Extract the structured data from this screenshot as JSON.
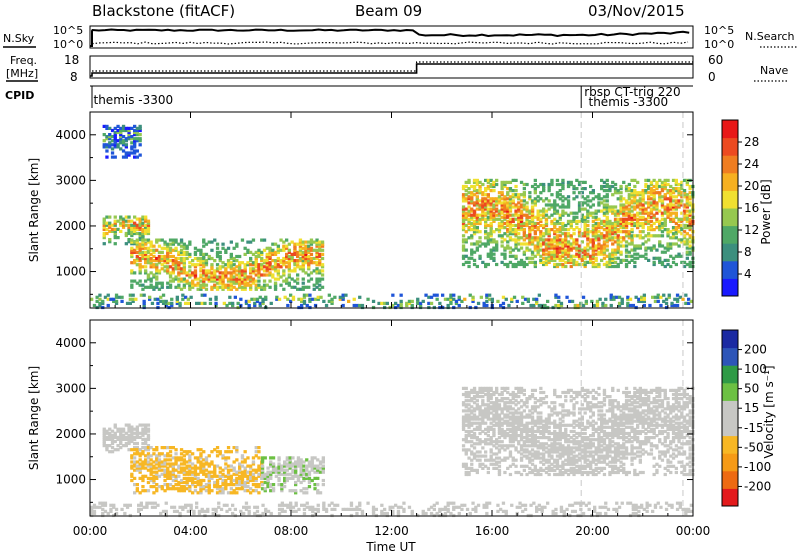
{
  "header": {
    "title": "Blackstone (fitACF)",
    "beam": "Beam 09",
    "date": "03/Nov/2015"
  },
  "top_panels": {
    "nsky_label": "N.Sky",
    "nsearch_label": "N.Search",
    "noise_ticks": [
      "10^5",
      "10^0"
    ],
    "freq_label_1": "Freq.",
    "freq_label_2": "[MHz]",
    "freq_ticks": [
      "18",
      "8"
    ],
    "nave_label": "Nave",
    "nave_ticks": [
      "60",
      "0"
    ],
    "cpid_label": "CPID",
    "cpid_segments": [
      {
        "text": "themis -3300",
        "start_hour": 0.1
      },
      {
        "text": "rbsp CT-trig 220",
        "start_hour": 19.55
      },
      {
        "text": "themis -3300",
        "start_hour": 19.6
      }
    ],
    "freq_step_hour": 13.0
  },
  "axes": {
    "xlabel": "Time UT",
    "ylabel": "Slant Range [km]",
    "x_tick_labels": [
      "00:00",
      "04:00",
      "08:00",
      "12:00",
      "16:00",
      "20:00",
      "00:00"
    ],
    "y_tick_labels": [
      "1000",
      "2000",
      "3000",
      "4000"
    ]
  },
  "colors": {
    "power": [
      "#1a1aff",
      "#1f55d8",
      "#3c8f7e",
      "#4fa866",
      "#96c850",
      "#f0e030",
      "#f6b020",
      "#ef7d20",
      "#ec4a20",
      "#e81818"
    ],
    "velocity": [
      "#e31a1c",
      "#ee6a12",
      "#f59a16",
      "#f7b724",
      "#c7c7c4",
      "#c7c7c4",
      "#6cc043",
      "#2f9a46",
      "#2d55b8",
      "#1b2aa2"
    ],
    "axis": "#000000",
    "guide": "#c8c8c8"
  },
  "chart_data": [
    {
      "type": "heatmap",
      "panel": "power",
      "xlabel": "Time UT",
      "ylabel": "Slant Range [km]",
      "xlim": [
        0,
        24
      ],
      "ylim": [
        200,
        4500
      ],
      "colorbar_label": "Power [dB]",
      "colorbar_ticks": [
        "28",
        "24",
        "20",
        "16",
        "12",
        "8",
        "4"
      ],
      "colorbar_range": [
        0,
        30
      ],
      "scatter_regions": [
        {
          "t": [
            0.5,
            2.3
          ],
          "r": [
            1600,
            2200
          ],
          "value": 17
        },
        {
          "t": [
            1.6,
            9.3
          ],
          "r": [
            600,
            1700
          ],
          "value": 18
        },
        {
          "t": [
            14.8,
            24.0
          ],
          "r": [
            1100,
            3000
          ],
          "value": 18
        },
        {
          "t": [
            0.5,
            2.0
          ],
          "r": [
            3500,
            4200
          ],
          "value": 7
        },
        {
          "t": [
            0.0,
            24.0
          ],
          "r": [
            200,
            500
          ],
          "value": 10
        }
      ]
    },
    {
      "type": "heatmap",
      "panel": "velocity",
      "xlabel": "Time UT",
      "ylabel": "Slant Range [km]",
      "xlim": [
        0,
        24
      ],
      "ylim": [
        200,
        4500
      ],
      "colorbar_label": "Velocity [m s⁻¹]",
      "colorbar_ticks": [
        "200",
        "100",
        "50",
        "15",
        "-15",
        "-50",
        "-100",
        "-200"
      ],
      "colorbar_range": [
        -250,
        250
      ],
      "scatter_regions": [
        {
          "t": [
            0.5,
            2.3
          ],
          "r": [
            1600,
            2200
          ],
          "value": 0
        },
        {
          "t": [
            1.6,
            6.8
          ],
          "r": [
            700,
            1700
          ],
          "value": -60
        },
        {
          "t": [
            6.8,
            9.3
          ],
          "r": [
            700,
            1500
          ],
          "value": 40
        },
        {
          "t": [
            14.8,
            24.0
          ],
          "r": [
            1100,
            3000
          ],
          "value": 0
        },
        {
          "t": [
            0.0,
            24.0
          ],
          "r": [
            200,
            500
          ],
          "value": 0
        }
      ]
    }
  ]
}
